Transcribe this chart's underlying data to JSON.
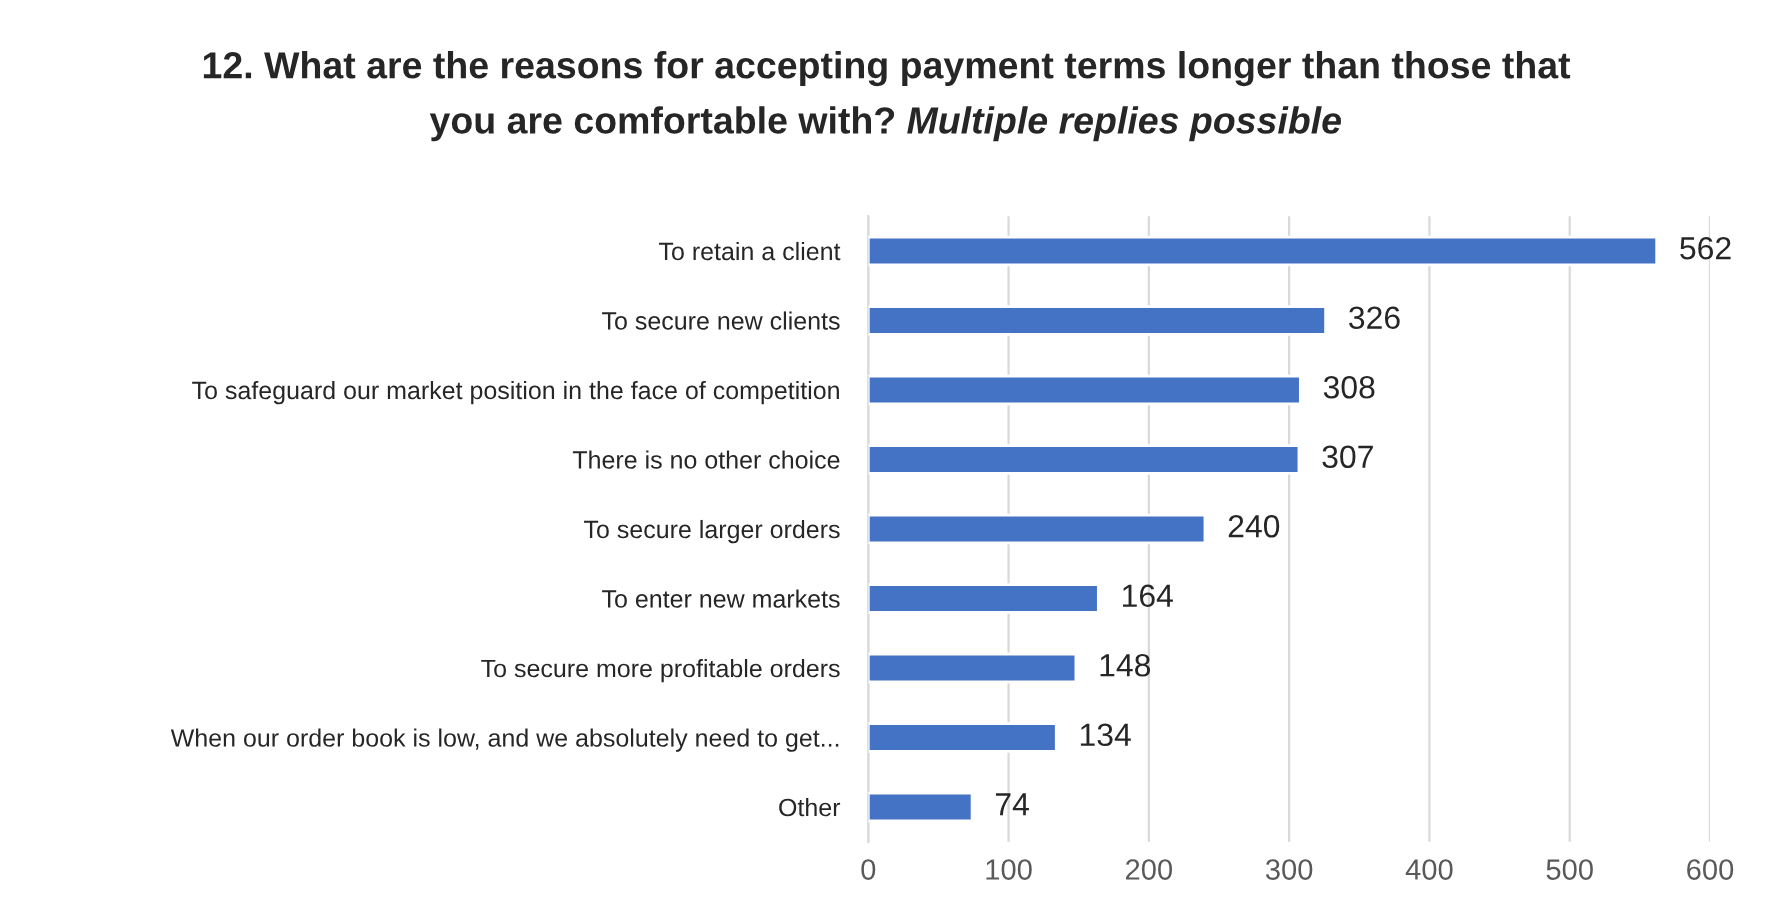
{
  "chart_data": {
    "type": "bar",
    "orientation": "horizontal",
    "title": "12. What are the reasons for accepting payment terms longer than those that you are comfortable with?",
    "subtitle": "Multiple replies possible",
    "categories": [
      "To retain a client",
      "To secure new clients",
      "To safeguard our market position in the face of competition",
      "There is no other choice",
      "To secure larger orders",
      "To enter new markets",
      "To secure more profitable orders",
      "When our order book is low, and we absolutely need to get...",
      "Other"
    ],
    "values": [
      562,
      326,
      308,
      307,
      240,
      164,
      148,
      134,
      74
    ],
    "color": "#4472c4",
    "xlim": [
      0,
      600
    ],
    "xticks": [
      0,
      100,
      200,
      300,
      400,
      500,
      600
    ],
    "grid": "x",
    "data_labels": true
  }
}
